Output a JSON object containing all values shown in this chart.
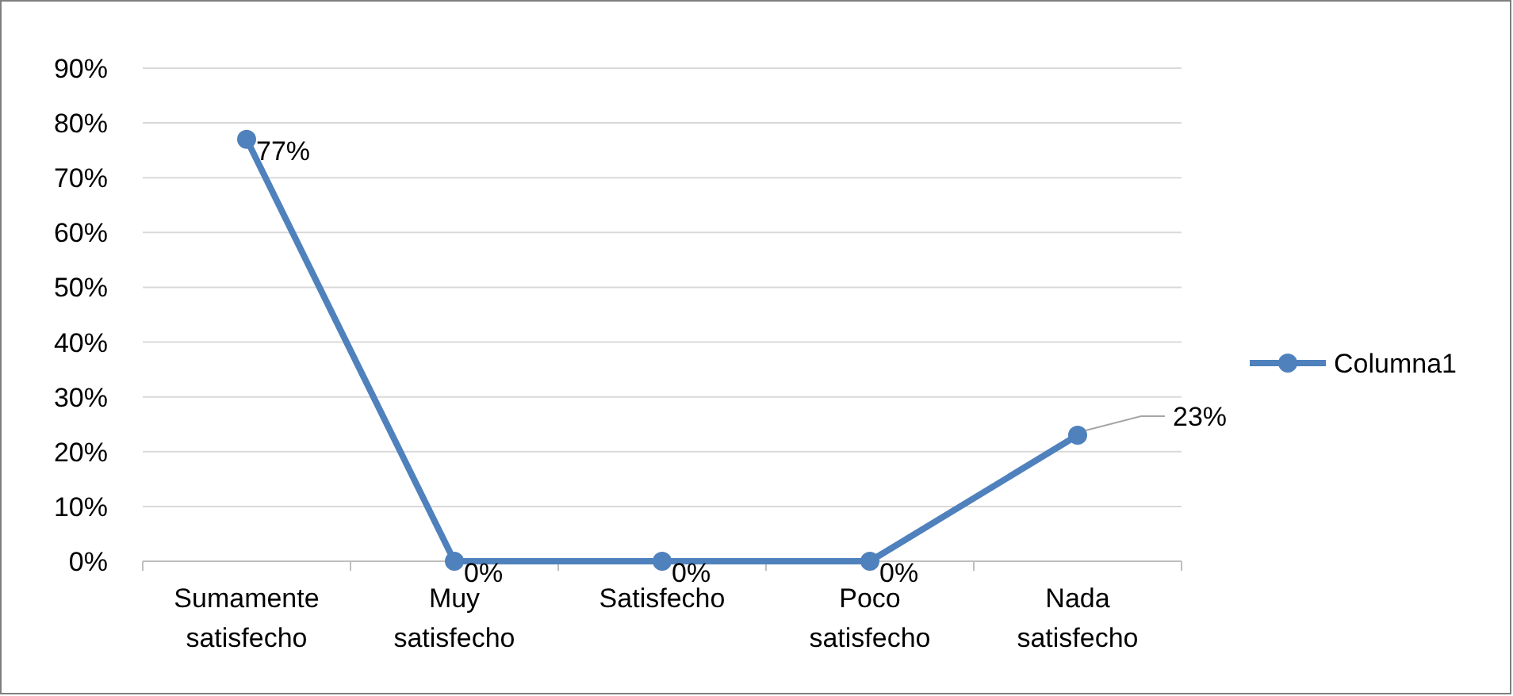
{
  "chart_data": {
    "type": "line",
    "categories": [
      "Sumamente satisfecho",
      "Muy satisfecho",
      "Satisfecho",
      "Poco satisfecho",
      "Nada satisfecho"
    ],
    "series": [
      {
        "name": "Columna1",
        "color": "#4f81bd",
        "values": [
          77,
          0,
          0,
          0,
          23
        ],
        "value_labels": [
          "77%",
          "0%",
          "0%",
          "0%",
          "23%"
        ]
      }
    ],
    "ylim": [
      0,
      90
    ],
    "yticks": [
      {
        "value": 0,
        "label": "0%"
      },
      {
        "value": 10,
        "label": "10%"
      },
      {
        "value": 20,
        "label": "20%"
      },
      {
        "value": 30,
        "label": "30%"
      },
      {
        "value": 40,
        "label": "40%"
      },
      {
        "value": 50,
        "label": "50%"
      },
      {
        "value": 60,
        "label": "60%"
      },
      {
        "value": 70,
        "label": "70%"
      },
      {
        "value": 80,
        "label": "80%"
      },
      {
        "value": 90,
        "label": "90%"
      }
    ],
    "grid": "y",
    "legend": "right",
    "marker": "circle",
    "line_style": "solid"
  }
}
